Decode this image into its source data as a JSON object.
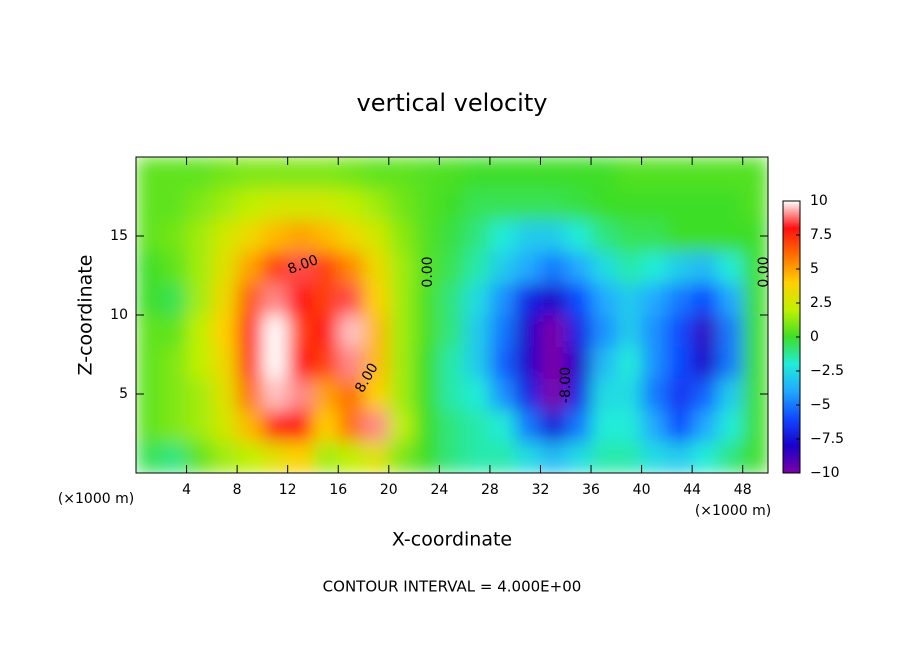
{
  "chart_data": {
    "type": "heatmap",
    "title": "vertical velocity",
    "xlabel": "X-coordinate",
    "ylabel": "Z-coordinate",
    "x_unit": "(×1000 m)",
    "footer": "CONTOUR INTERVAL = 4.000E+00",
    "xlim": [
      0,
      50
    ],
    "ylim": [
      0,
      20
    ],
    "xticks": [
      4,
      8,
      12,
      16,
      20,
      24,
      28,
      32,
      36,
      40,
      44,
      48
    ],
    "yticks": [
      5,
      10,
      15
    ],
    "colorbar_lim": [
      -10,
      10
    ],
    "colorbar_ticks": [
      10,
      7.5,
      5,
      2.5,
      0,
      {
        "value": -2.5,
        "label": "−2.5"
      },
      {
        "value": -5,
        "label": "−5"
      },
      {
        "value": -7.5,
        "label": "−7.5"
      },
      {
        "value": -10,
        "label": "−10"
      }
    ],
    "colorscale": [
      "#7a00a8",
      "#1a00c8",
      "#1048ff",
      "#20a8ff",
      "#20ecd8",
      "#3ede28",
      "#c0f000",
      "#ffd000",
      "#ff7000",
      "#ff1010",
      "#ffffff"
    ],
    "contour_labels": [
      "8.00",
      "0.00",
      "8.00",
      "-8.00",
      "0.00"
    ],
    "x": [
      1,
      3,
      5,
      7,
      9,
      11,
      13,
      15,
      17,
      19,
      21,
      23,
      25,
      27,
      29,
      31,
      33,
      35,
      37,
      39,
      41,
      43,
      45,
      47,
      49
    ],
    "y": [
      1,
      3,
      5,
      7,
      9,
      11,
      13,
      15,
      17,
      19
    ],
    "z": [
      [
        -0.5,
        -1,
        0.5,
        1.5,
        2,
        3,
        4,
        1.5,
        2,
        3,
        1,
        0,
        -1,
        -1.5,
        -1.5,
        -2.5,
        -3.5,
        -2.5,
        -1.5,
        -1.5,
        -2.5,
        -3,
        -2,
        -1,
        0
      ],
      [
        0.5,
        1,
        1.5,
        2.5,
        4.5,
        7.5,
        8,
        4,
        6,
        9,
        2,
        0,
        -1,
        -1.5,
        -2,
        -5,
        -7.5,
        -5,
        -2,
        -2,
        -4,
        -6,
        -4,
        -2,
        0
      ],
      [
        0.5,
        1,
        1.5,
        3,
        6,
        9.5,
        9,
        5,
        6,
        4,
        1.5,
        0,
        -1.5,
        -2,
        -4.5,
        -7,
        -10,
        -7,
        -2.5,
        -2.5,
        -5,
        -6.5,
        -5.5,
        -3,
        0
      ],
      [
        0.5,
        1,
        2,
        3.5,
        7.5,
        10,
        8,
        7,
        9,
        4.5,
        1.5,
        0,
        -1.5,
        -3,
        -5.5,
        -8,
        -10,
        -8,
        -3.5,
        -2,
        -4.5,
        -6,
        -8,
        -5,
        0
      ],
      [
        0.5,
        0.5,
        2,
        4,
        8,
        10,
        7,
        8,
        9.5,
        4.5,
        1.5,
        0.2,
        -1,
        -3,
        -5,
        -8,
        -10,
        -7,
        -4.5,
        -3,
        -4.5,
        -6,
        -8.5,
        -5,
        0
      ],
      [
        0,
        -0.5,
        1.5,
        3.5,
        6.5,
        9,
        8,
        7,
        8.5,
        4,
        1.5,
        0.2,
        -1,
        -2.5,
        -4.5,
        -7,
        -8,
        -6,
        -4,
        -3,
        -4,
        -5,
        -6,
        -4,
        0
      ],
      [
        0,
        0.5,
        1.5,
        3,
        5,
        7,
        8.5,
        7,
        5.5,
        3.5,
        1.5,
        0.3,
        -0.5,
        -1.5,
        -3,
        -4,
        -5,
        -4,
        -2.5,
        -1.5,
        -2,
        -3,
        -3.5,
        -2,
        0
      ],
      [
        0.5,
        0.8,
        1.5,
        2.5,
        3.5,
        4.5,
        5,
        4.5,
        3.5,
        2.5,
        1.2,
        0.3,
        -0.3,
        -1,
        -2,
        -3,
        -3,
        -2,
        -1,
        -0.5,
        -0.5,
        0,
        0,
        0,
        0
      ],
      [
        0.5,
        0.5,
        1,
        1.5,
        2,
        2.5,
        2.5,
        2.5,
        2,
        1.5,
        0.8,
        0.3,
        0,
        -0.5,
        -0.5,
        -0.5,
        -0.5,
        -0.3,
        0,
        0,
        0,
        0,
        0,
        0,
        0.3
      ],
      [
        0.5,
        0.5,
        0.5,
        0.8,
        1,
        1,
        1,
        1,
        0.8,
        0.5,
        0.5,
        0.3,
        0.2,
        0,
        0,
        0,
        0,
        0,
        0,
        0.3,
        0.3,
        0.3,
        0.3,
        0.3,
        0.3
      ]
    ]
  }
}
